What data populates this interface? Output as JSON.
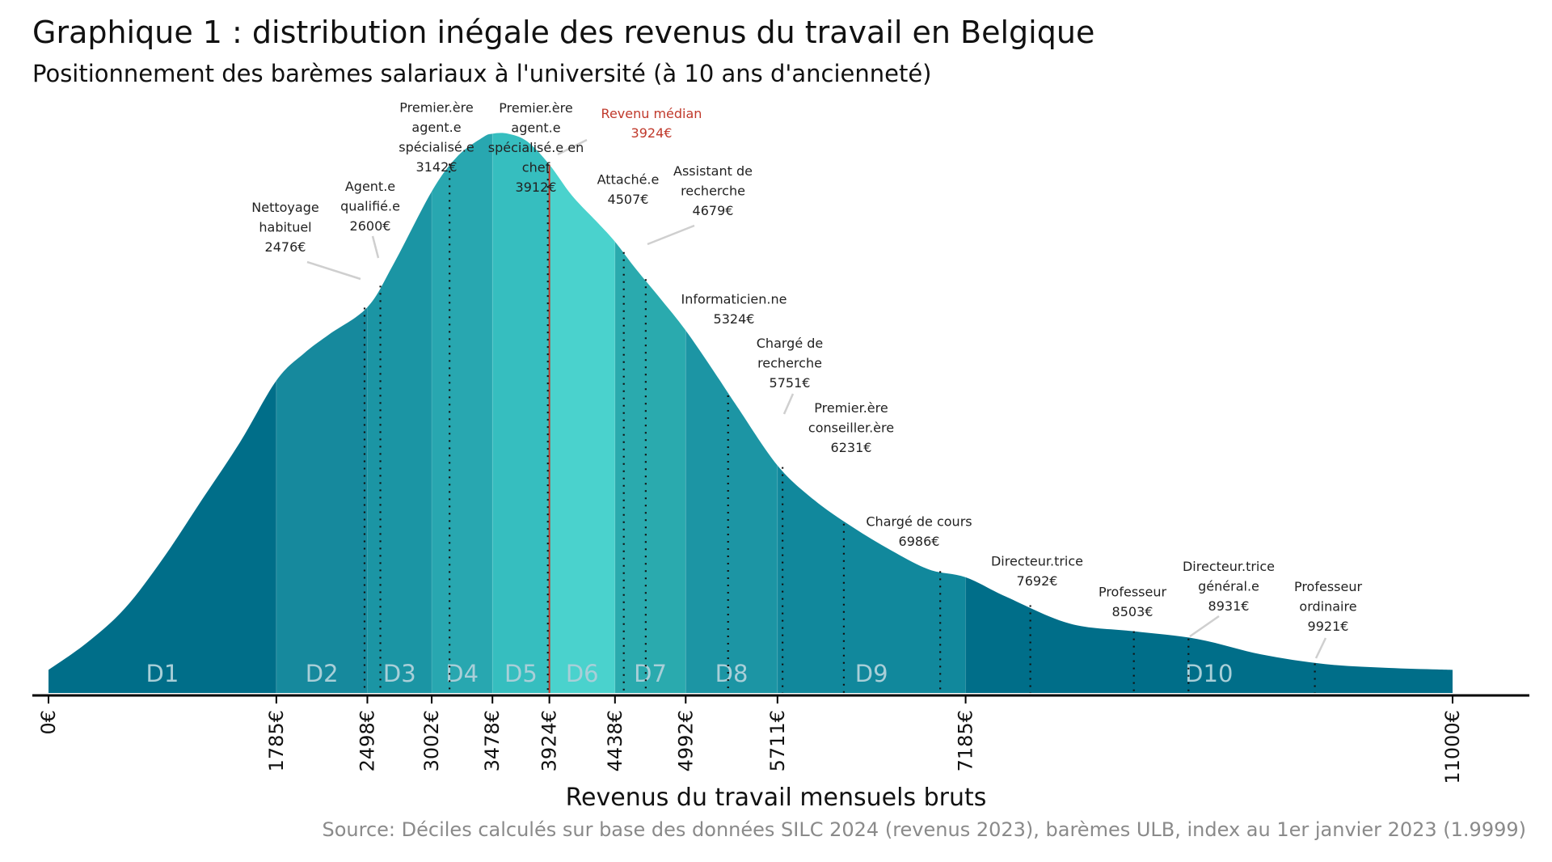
{
  "chart_data": {
    "type": "area",
    "title": "Graphique 1 : distribution inégale des revenus du travail en Belgique",
    "subtitle": "Positionnement des barèmes salariaux à l'université (à 10 ans d'ancienneté)",
    "xlabel": "Revenus du travail mensuels bruts",
    "source": "Source: Déciles calculés sur base des données SILC 2024 (revenus 2023), barèmes ULB, index au 1er janvier 2023 (1.9999)",
    "xlim": [
      0,
      11000
    ],
    "x_ticks": [
      "0€",
      "1785€",
      "2498€",
      "3002€",
      "3478€",
      "3924€",
      "4438€",
      "4992€",
      "5711€",
      "7185€",
      "11000€"
    ],
    "x_tick_values": [
      0,
      1785,
      2498,
      3002,
      3478,
      3924,
      4438,
      4992,
      5711,
      7185,
      11000
    ],
    "density_curve": {
      "x": [
        0,
        300,
        600,
        900,
        1200,
        1500,
        1785,
        2000,
        2200,
        2498,
        2700,
        3002,
        3200,
        3400,
        3478,
        3600,
        3750,
        3924,
        4100,
        4300,
        4438,
        4600,
        4800,
        4992,
        5200,
        5400,
        5711,
        6000,
        6300,
        6600,
        6900,
        7185,
        7500,
        8000,
        8500,
        9000,
        9500,
        10000,
        10500,
        11000
      ],
      "y": [
        0.06,
        0.13,
        0.22,
        0.35,
        0.5,
        0.65,
        0.81,
        0.88,
        0.93,
        1.0,
        1.11,
        1.3,
        1.39,
        1.44,
        1.45,
        1.45,
        1.43,
        1.37,
        1.29,
        1.22,
        1.17,
        1.1,
        1.02,
        0.94,
        0.84,
        0.74,
        0.59,
        0.5,
        0.43,
        0.37,
        0.32,
        0.3,
        0.25,
        0.18,
        0.16,
        0.14,
        0.1,
        0.075,
        0.065,
        0.06
      ]
    },
    "deciles": [
      {
        "name": "D1",
        "from": 0,
        "to": 1785,
        "color": "#006e89"
      },
      {
        "name": "D2",
        "from": 1785,
        "to": 2498,
        "color": "#16899d"
      },
      {
        "name": "D3",
        "from": 2498,
        "to": 3002,
        "color": "#1b95a4"
      },
      {
        "name": "D4",
        "from": 3002,
        "to": 3478,
        "color": "#28a7b0"
      },
      {
        "name": "D5",
        "from": 3478,
        "to": 3924,
        "color": "#36bebf"
      },
      {
        "name": "D6",
        "from": 3924,
        "to": 4438,
        "color": "#4ad2cd"
      },
      {
        "name": "D7",
        "from": 4438,
        "to": 4992,
        "color": "#2aaaae"
      },
      {
        "name": "D8",
        "from": 4992,
        "to": 5711,
        "color": "#1c95a4"
      },
      {
        "name": "D9",
        "from": 5711,
        "to": 7185,
        "color": "#11889c"
      },
      {
        "name": "D10",
        "from": 7185,
        "to": 11000,
        "color": "#006e89"
      }
    ],
    "median": {
      "label": "Revenu médian",
      "value_label": "3924€",
      "value": 3924,
      "color": "#c0392b"
    },
    "salary_scales": [
      {
        "lines": [
          "Nettoyage",
          "habituel",
          "2476€"
        ],
        "value": 2476
      },
      {
        "lines": [
          "Agent.e",
          "qualifié.e",
          "2600€"
        ],
        "value": 2600
      },
      {
        "lines": [
          "Premier.ère",
          "agent.e",
          "spécialisé.e",
          "3142€"
        ],
        "value": 3142
      },
      {
        "lines": [
          "Premier.ère",
          "agent.e",
          "spécialisé.e en",
          "chef",
          "3912€"
        ],
        "value": 3912
      },
      {
        "lines": [
          "Attaché.e",
          "4507€"
        ],
        "value": 4507
      },
      {
        "lines": [
          "Assistant de",
          "recherche",
          "4679€"
        ],
        "value": 4679
      },
      {
        "lines": [
          "Informaticien.ne",
          "5324€"
        ],
        "value": 5324
      },
      {
        "lines": [
          "Chargé de",
          "recherche",
          "5751€"
        ],
        "value": 5751
      },
      {
        "lines": [
          "Premier.ère",
          "conseiller.ère",
          "6231€"
        ],
        "value": 6231
      },
      {
        "lines": [
          "Chargé de cours",
          "6986€"
        ],
        "value": 6986
      },
      {
        "lines": [
          "Directeur.trice",
          "7692€"
        ],
        "value": 7692
      },
      {
        "lines": [
          "Professeur",
          "8503€"
        ],
        "value": 8503
      },
      {
        "lines": [
          "Directeur.trice",
          "général.e",
          "8931€"
        ],
        "value": 8931
      },
      {
        "lines": [
          "Professeur",
          "ordinaire",
          "9921€"
        ],
        "value": 9921
      }
    ]
  }
}
